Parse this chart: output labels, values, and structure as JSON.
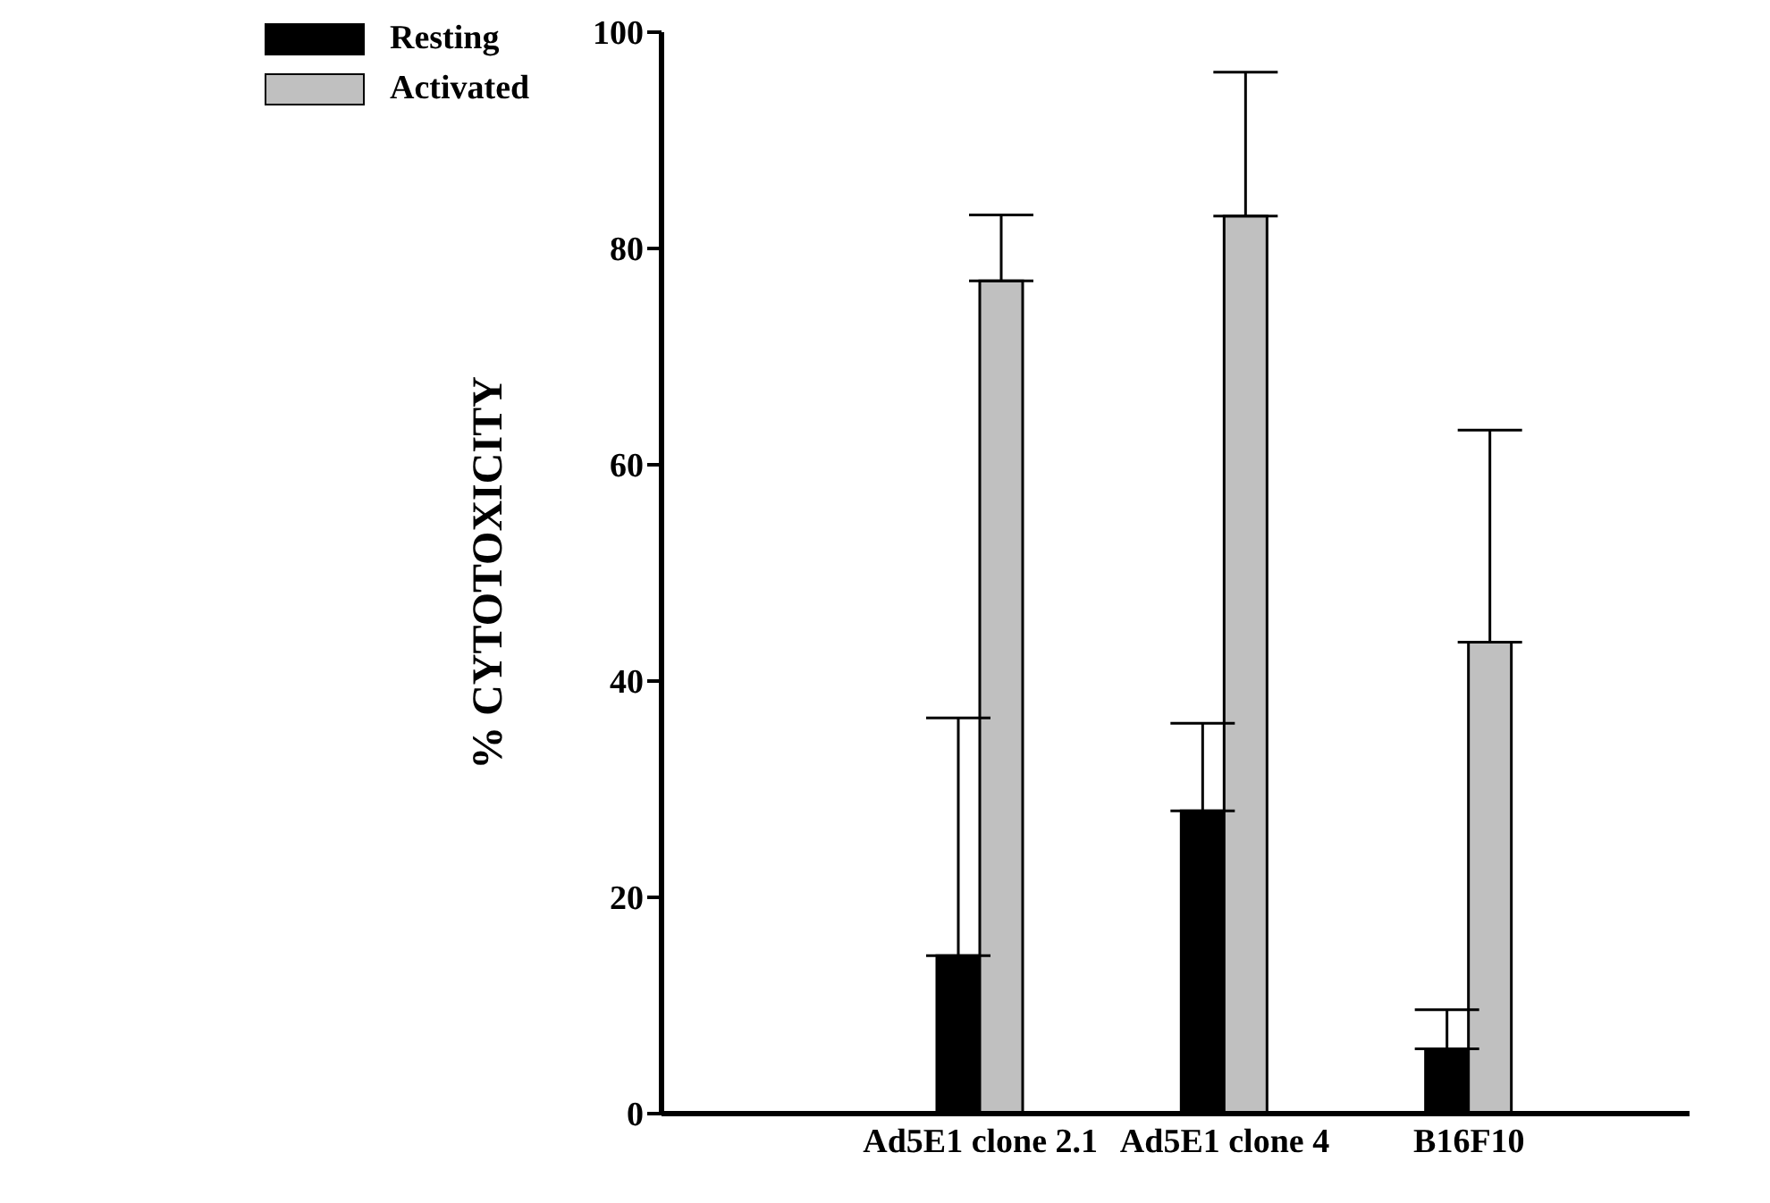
{
  "chart_data": {
    "type": "bar",
    "ylabel": "% CYTOTOXICITY",
    "categories": [
      "Ad5E1 clone 2.1",
      "Ad5E1 clone 4",
      "B16F10"
    ],
    "series": [
      {
        "name": "Resting",
        "color": "#000000",
        "values": [
          14.6,
          28.0,
          6.0
        ],
        "errors": [
          22.0,
          8.1,
          3.6
        ]
      },
      {
        "name": "Activated",
        "color": "#c0c0c0",
        "values": [
          77.0,
          83.0,
          43.6
        ],
        "errors": [
          6.1,
          13.3,
          19.6
        ]
      }
    ],
    "ylim": [
      0,
      100
    ],
    "yticks": [
      0,
      20,
      40,
      60,
      80,
      100
    ],
    "grid": false,
    "legend": "top left"
  }
}
